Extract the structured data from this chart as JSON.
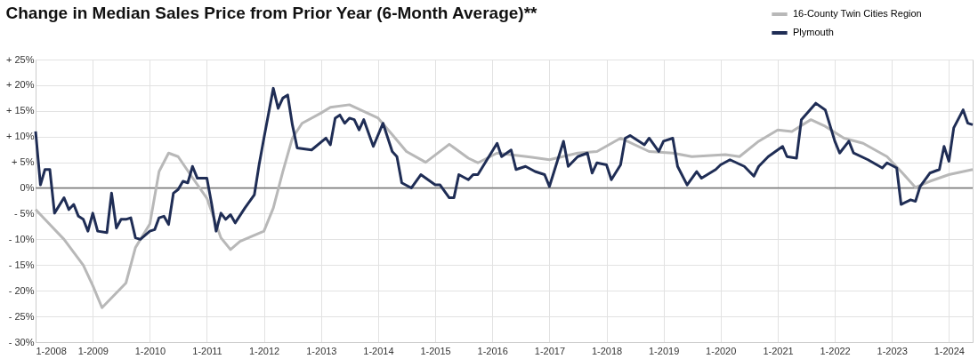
{
  "chart_data": {
    "type": "line",
    "title": "Change in Median Sales Price from Prior Year (6-Month Average)**",
    "xlim": [
      "2008-01",
      "2024-06"
    ],
    "xticks": [
      {
        "value": "2008-01",
        "label": "1-2008"
      },
      {
        "value": "2009-01",
        "label": "1-2009"
      },
      {
        "value": "2010-01",
        "label": "1-2010"
      },
      {
        "value": "2011-01",
        "label": "1-2011"
      },
      {
        "value": "2012-01",
        "label": "1-2012"
      },
      {
        "value": "2013-01",
        "label": "1-2013"
      },
      {
        "value": "2014-01",
        "label": "1-2014"
      },
      {
        "value": "2015-01",
        "label": "1-2015"
      },
      {
        "value": "2016-01",
        "label": "1-2016"
      },
      {
        "value": "2017-01",
        "label": "1-2017"
      },
      {
        "value": "2018-01",
        "label": "1-2018"
      },
      {
        "value": "2019-01",
        "label": "1-2019"
      },
      {
        "value": "2020-01",
        "label": "1-2020"
      },
      {
        "value": "2021-01",
        "label": "1-2021"
      },
      {
        "value": "2022-01",
        "label": "1-2022"
      },
      {
        "value": "2023-01",
        "label": "1-2023"
      },
      {
        "value": "2024-01",
        "label": "1-2024"
      }
    ],
    "ylim": [
      -30,
      25
    ],
    "yticks": [
      {
        "value": 25,
        "label": "+ 25%"
      },
      {
        "value": 20,
        "label": "+ 20%"
      },
      {
        "value": 15,
        "label": "+ 15%"
      },
      {
        "value": 10,
        "label": "+ 10%"
      },
      {
        "value": 5,
        "label": "+ 5%"
      },
      {
        "value": 0,
        "label": "0%"
      },
      {
        "value": -5,
        "label": "- 5%"
      },
      {
        "value": -10,
        "label": "- 10%"
      },
      {
        "value": -15,
        "label": "- 15%"
      },
      {
        "value": -20,
        "label": "- 20%"
      },
      {
        "value": -25,
        "label": "- 25%"
      },
      {
        "value": -30,
        "label": "- 30%"
      }
    ],
    "grid": true,
    "legend": "top right",
    "ref_lines": [
      {
        "axis": "y",
        "value": 0,
        "color": "#777777"
      }
    ],
    "series": [
      {
        "name": "16-County Twin Cities Region",
        "color": "#b8b8b8",
        "x": [
          "2008-01",
          "2008-07",
          "2008-11",
          "2009-01",
          "2009-03",
          "2009-08",
          "2009-10",
          "2010-01",
          "2010-03",
          "2010-05",
          "2010-07",
          "2010-10",
          "2011-01",
          "2011-04",
          "2011-06",
          "2011-08",
          "2012-01",
          "2012-03",
          "2012-05",
          "2012-07",
          "2012-09",
          "2013-01",
          "2013-03",
          "2013-07",
          "2014-01",
          "2014-04",
          "2014-07",
          "2014-11",
          "2015-04",
          "2015-08",
          "2015-10",
          "2016-02",
          "2016-09",
          "2017-01",
          "2017-07",
          "2017-11",
          "2018-04",
          "2018-10",
          "2019-03",
          "2019-07",
          "2020-02",
          "2020-05",
          "2020-09",
          "2021-01",
          "2021-04",
          "2021-08",
          "2021-11",
          "2022-03",
          "2022-07",
          "2022-12",
          "2023-03",
          "2023-06",
          "2023-09",
          "2024-01",
          "2024-06"
        ],
        "values": [
          -4.2,
          -10,
          -15,
          -19,
          -23.3,
          -18.5,
          -11.6,
          -7,
          3.2,
          6.8,
          6.1,
          2,
          -2,
          -9.7,
          -12,
          -10.4,
          -8.4,
          -3.9,
          3.2,
          9.7,
          12.6,
          14.6,
          15.7,
          16.2,
          13.6,
          10.4,
          7.1,
          5,
          8.5,
          5.8,
          4.9,
          6.8,
          6,
          5.5,
          6.8,
          7.1,
          9.7,
          7.1,
          6.8,
          6.1,
          6.5,
          6.1,
          9.1,
          11.3,
          11,
          13.3,
          12,
          9.7,
          8.7,
          6.1,
          3.2,
          0.1,
          1.3,
          2.6,
          3.6
        ]
      },
      {
        "name": "Plymouth",
        "color": "#1f2d55",
        "x": [
          "2008-01",
          "2008-02",
          "2008-03",
          "2008-04",
          "2008-05",
          "2008-07",
          "2008-08",
          "2008-09",
          "2008-10",
          "2008-11",
          "2008-12",
          "2009-01",
          "2009-02",
          "2009-04",
          "2009-05",
          "2009-06",
          "2009-07",
          "2009-08",
          "2009-09",
          "2009-10",
          "2009-11",
          "2010-01",
          "2010-02",
          "2010-03",
          "2010-04",
          "2010-05",
          "2010-06",
          "2010-07",
          "2010-08",
          "2010-09",
          "2010-10",
          "2010-11",
          "2011-01",
          "2011-02",
          "2011-03",
          "2011-04",
          "2011-05",
          "2011-06",
          "2011-07",
          "2011-09",
          "2011-11",
          "2011-12",
          "2012-01",
          "2012-03",
          "2012-04",
          "2012-05",
          "2012-06",
          "2012-07",
          "2012-08",
          "2012-11",
          "2013-02",
          "2013-03",
          "2013-04",
          "2013-05",
          "2013-06",
          "2013-07",
          "2013-08",
          "2013-09",
          "2013-10",
          "2013-12",
          "2014-02",
          "2014-04",
          "2014-05",
          "2014-06",
          "2014-08",
          "2014-10",
          "2015-01",
          "2015-02",
          "2015-04",
          "2015-05",
          "2015-06",
          "2015-08",
          "2015-09",
          "2015-10",
          "2016-02",
          "2016-03",
          "2016-05",
          "2016-06",
          "2016-08",
          "2016-10",
          "2016-12",
          "2017-01",
          "2017-04",
          "2017-05",
          "2017-07",
          "2017-09",
          "2017-10",
          "2017-11",
          "2018-01",
          "2018-02",
          "2018-04",
          "2018-05",
          "2018-06",
          "2018-09",
          "2018-10",
          "2018-12",
          "2019-01",
          "2019-03",
          "2019-04",
          "2019-06",
          "2019-08",
          "2019-09",
          "2019-12",
          "2020-01",
          "2020-03",
          "2020-06",
          "2020-08",
          "2020-09",
          "2020-11",
          "2021-02",
          "2021-03",
          "2021-05",
          "2021-06",
          "2021-09",
          "2021-11",
          "2022-01",
          "2022-02",
          "2022-04",
          "2022-05",
          "2022-08",
          "2022-11",
          "2022-12",
          "2023-02",
          "2023-03",
          "2023-05",
          "2023-06",
          "2023-07",
          "2023-09",
          "2023-11",
          "2023-12",
          "2024-01",
          "2024-02",
          "2024-04",
          "2024-05",
          "2024-06"
        ],
        "values": [
          11,
          0.6,
          3.6,
          3.6,
          -4.9,
          -1.9,
          -4.2,
          -3.2,
          -5.5,
          -6.1,
          -8.4,
          -4.9,
          -8.4,
          -8.7,
          -1,
          -7.8,
          -6.1,
          -6.1,
          -5.8,
          -9.7,
          -10,
          -8.4,
          -8.1,
          -5.8,
          -5.5,
          -7.1,
          -1,
          -0.3,
          1.3,
          1,
          4.2,
          1.9,
          1.9,
          -3.2,
          -8.4,
          -4.9,
          -6.1,
          -5.2,
          -6.8,
          -3.9,
          -1.3,
          4.5,
          9.7,
          19.4,
          15.5,
          17.5,
          18.1,
          12.3,
          7.8,
          7.4,
          9.7,
          8.4,
          13.6,
          14.2,
          12.6,
          13.6,
          13.3,
          11.3,
          13.3,
          8.1,
          12.6,
          7.1,
          6.1,
          1,
          0,
          2.6,
          0.6,
          0.6,
          -1.9,
          -1.9,
          2.6,
          1.6,
          2.6,
          2.6,
          8.7,
          6.1,
          7.4,
          3.6,
          4.2,
          3.2,
          2.6,
          0.3,
          9.1,
          4.2,
          6.1,
          6.8,
          2.9,
          4.9,
          4.5,
          1.6,
          4.5,
          9.7,
          10.2,
          8.4,
          9.7,
          7.1,
          9.1,
          9.7,
          4.2,
          0.6,
          3.2,
          1.9,
          3.6,
          4.5,
          5.5,
          4.2,
          2.3,
          4.2,
          6.1,
          8.1,
          6.1,
          5.8,
          13.3,
          16.5,
          15.2,
          9.1,
          6.8,
          9.1,
          6.8,
          5.5,
          3.9,
          4.9,
          3.9,
          -3.2,
          -2.3,
          -2.6,
          0.3,
          2.9,
          3.6,
          8.1,
          5.2,
          11.7,
          15.2,
          12.6,
          12.3
        ]
      }
    ]
  }
}
